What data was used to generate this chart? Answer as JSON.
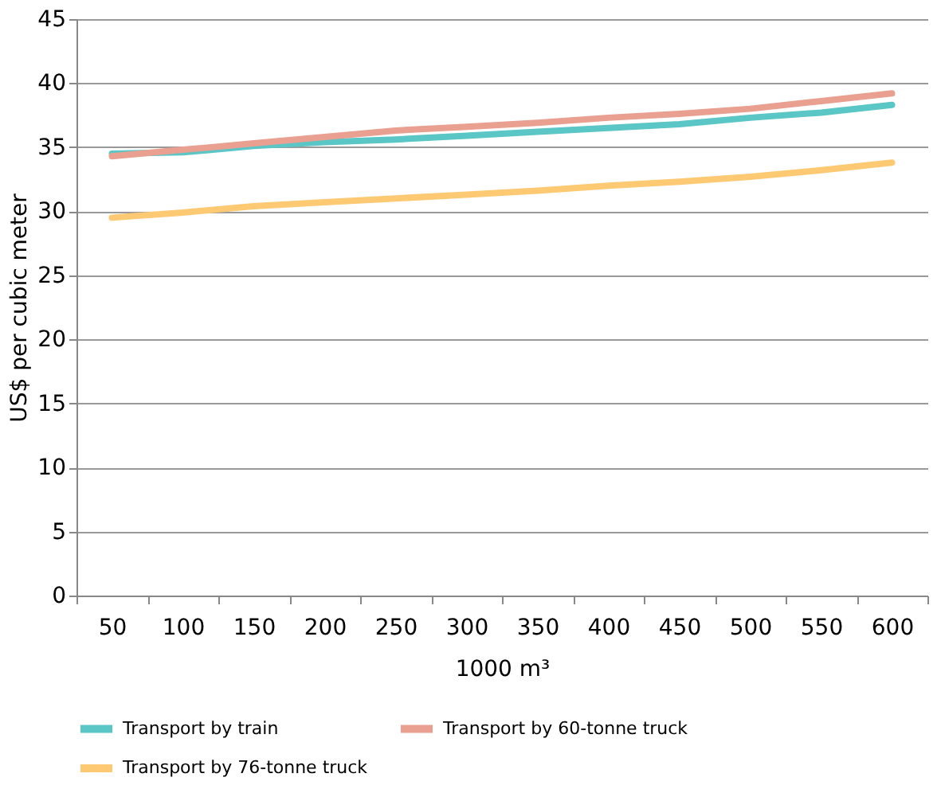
{
  "chart_data": {
    "type": "line",
    "xlabel": "1000 m³",
    "ylabel": "US$ per cubic meter",
    "categories": [
      "50",
      "100",
      "150",
      "200",
      "250",
      "300",
      "350",
      "400",
      "450",
      "500",
      "550",
      "600"
    ],
    "series": [
      {
        "name": "Transport by train",
        "color": "#5bc6c6",
        "values": [
          34.5,
          34.6,
          35.1,
          35.4,
          35.6,
          35.9,
          36.2,
          36.5,
          36.8,
          37.3,
          37.7,
          38.3
        ]
      },
      {
        "name": "Transport by 60-tonne truck",
        "color": "#e9a090",
        "values": [
          34.3,
          34.8,
          35.3,
          35.8,
          36.3,
          36.6,
          36.9,
          37.3,
          37.6,
          38.0,
          38.6,
          39.2
        ]
      },
      {
        "name": "Transport by 76-tonne truck",
        "color": "#fdc972",
        "values": [
          29.5,
          29.9,
          30.4,
          30.7,
          31.0,
          31.3,
          31.6,
          32.0,
          32.3,
          32.7,
          33.2,
          33.8
        ]
      }
    ],
    "ylim": [
      0,
      45
    ],
    "yticks": [
      0,
      5,
      10,
      15,
      20,
      25,
      30,
      35,
      40,
      45
    ],
    "grid": "y",
    "legend": "bottom",
    "marker": "none",
    "line_style": "solid"
  }
}
